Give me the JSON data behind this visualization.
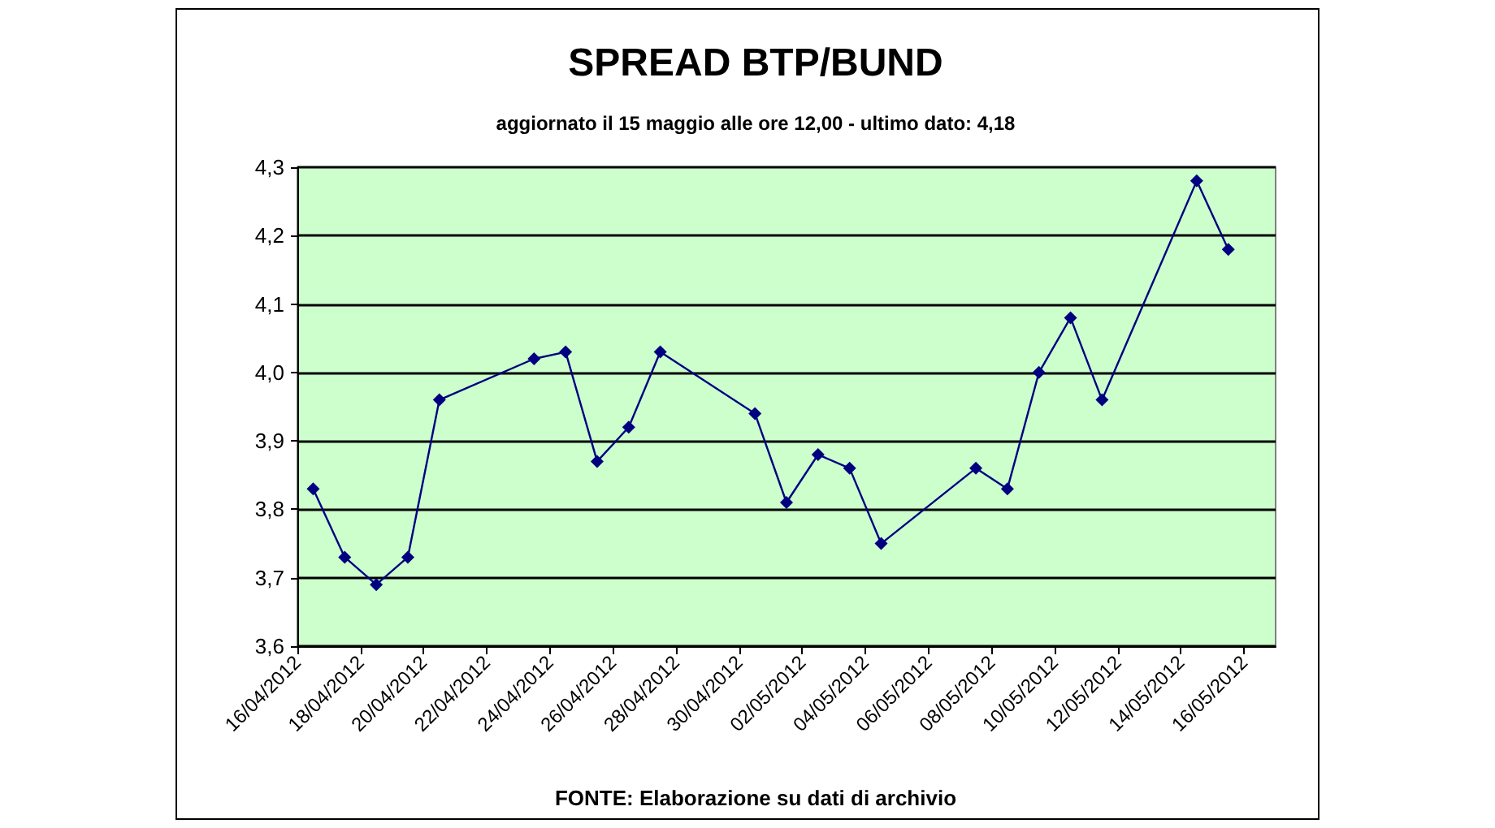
{
  "chart_data": {
    "type": "line",
    "title": "SPREAD BTP/BUND",
    "subtitle": "aggiornato il 15 maggio alle ore 12,00 - ultimo dato: 4,18",
    "annotations": [
      "FONTE: Elaborazione su dati di archivio"
    ],
    "x": [
      "2012-04-16T12:00",
      "2012-04-17T12:00",
      "2012-04-18T12:00",
      "2012-04-19T12:00",
      "2012-04-20T12:00",
      "2012-04-23T12:00",
      "2012-04-24T12:00",
      "2012-04-25T12:00",
      "2012-04-26T12:00",
      "2012-04-27T12:00",
      "2012-04-30T12:00",
      "2012-05-01T12:00",
      "2012-05-02T12:00",
      "2012-05-03T12:00",
      "2012-05-04T12:00",
      "2012-05-07T12:00",
      "2012-05-08T12:00",
      "2012-05-09T12:00",
      "2012-05-10T12:00",
      "2012-05-11T12:00",
      "2012-05-14T12:00",
      "2012-05-15T12:00"
    ],
    "series": [
      {
        "color": "#000080",
        "values": [
          3.83,
          3.73,
          3.69,
          3.73,
          3.96,
          4.02,
          4.03,
          3.87,
          3.92,
          4.03,
          3.94,
          3.81,
          3.88,
          3.86,
          3.75,
          3.86,
          3.83,
          4.0,
          4.08,
          3.96,
          4.28,
          4.18
        ]
      }
    ],
    "xlim": [
      "2012-04-16",
      "2012-05-17"
    ],
    "xticks": [
      {
        "value": "2012-04-16",
        "label": "16/04/2012"
      },
      {
        "value": "2012-04-18",
        "label": "18/04/2012"
      },
      {
        "value": "2012-04-20",
        "label": "20/04/2012"
      },
      {
        "value": "2012-04-22",
        "label": "22/04/2012"
      },
      {
        "value": "2012-04-24",
        "label": "24/04/2012"
      },
      {
        "value": "2012-04-26",
        "label": "26/04/2012"
      },
      {
        "value": "2012-04-28",
        "label": "28/04/2012"
      },
      {
        "value": "2012-04-30",
        "label": "30/04/2012"
      },
      {
        "value": "2012-05-02",
        "label": "02/05/2012"
      },
      {
        "value": "2012-05-04",
        "label": "04/05/2012"
      },
      {
        "value": "2012-05-06",
        "label": "06/05/2012"
      },
      {
        "value": "2012-05-08",
        "label": "08/05/2012"
      },
      {
        "value": "2012-05-10",
        "label": "10/05/2012"
      },
      {
        "value": "2012-05-12",
        "label": "12/05/2012"
      },
      {
        "value": "2012-05-14",
        "label": "14/05/2012"
      },
      {
        "value": "2012-05-16",
        "label": "16/05/2012"
      }
    ],
    "ylim": [
      3.6,
      4.3
    ],
    "yticks": [
      {
        "value": 3.6,
        "label": "3,6"
      },
      {
        "value": 3.7,
        "label": "3,7"
      },
      {
        "value": 3.8,
        "label": "3,8"
      },
      {
        "value": 3.9,
        "label": "3,9"
      },
      {
        "value": 4.0,
        "label": "4,0"
      },
      {
        "value": 4.1,
        "label": "4,1"
      },
      {
        "value": 4.2,
        "label": "4,2"
      },
      {
        "value": 4.3,
        "label": "4,3"
      }
    ],
    "grid": "y",
    "marker": "diamond",
    "line_style": "solid"
  }
}
